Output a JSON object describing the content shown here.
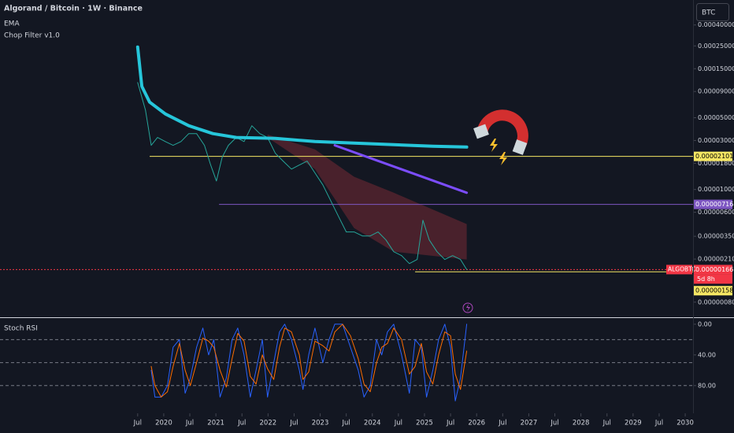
{
  "chart_data": [
    {
      "type": "line",
      "title": "Algorand / Bitcoin · 1W · Binance",
      "indicators": [
        "EMA",
        "Chop Filter v1.0"
      ],
      "currency_button": "BTC",
      "countdown": "5d 8h",
      "log_scale": true,
      "xlim": [
        2016.86,
        2030.15
      ],
      "xticks": [
        {
          "value": 2019.5,
          "label": "Jul"
        },
        {
          "value": 2020,
          "label": "2020"
        },
        {
          "value": 2020.5,
          "label": "Jul"
        },
        {
          "value": 2021,
          "label": "2021"
        },
        {
          "value": 2021.5,
          "label": "Jul"
        },
        {
          "value": 2022,
          "label": "2022"
        },
        {
          "value": 2022.5,
          "label": "Jul"
        },
        {
          "value": 2023,
          "label": "2023"
        },
        {
          "value": 2023.5,
          "label": "Jul"
        },
        {
          "value": 2024,
          "label": "2024"
        },
        {
          "value": 2024.5,
          "label": "Jul"
        },
        {
          "value": 2025,
          "label": "2025"
        },
        {
          "value": 2025.5,
          "label": "Jul"
        },
        {
          "value": 2026,
          "label": "2026"
        },
        {
          "value": 2026.5,
          "label": "Jul"
        },
        {
          "value": 2027,
          "label": "2027"
        },
        {
          "value": 2027.5,
          "label": "Jul"
        },
        {
          "value": 2028,
          "label": "2028"
        },
        {
          "value": 2028.5,
          "label": "Jul"
        },
        {
          "value": 2029,
          "label": "2029"
        },
        {
          "value": 2029.5,
          "label": "Jul"
        },
        {
          "value": 2030,
          "label": "2030"
        }
      ],
      "ylim": [
        0.0007,
        5.8e-07
      ],
      "yticks": [
        {
          "value": 0.0004,
          "label": "0.00040000"
        },
        {
          "value": 0.00025,
          "label": "0.00025000"
        },
        {
          "value": 0.00015,
          "label": "0.00015000"
        },
        {
          "value": 9e-05,
          "label": "0.00009000"
        },
        {
          "value": 5e-05,
          "label": "0.00005000"
        },
        {
          "value": 3e-05,
          "label": "0.00003000"
        },
        {
          "value": 1.8e-05,
          "label": "0.00001800"
        },
        {
          "value": 1e-05,
          "label": "0.00001000"
        },
        {
          "value": 6e-06,
          "label": "0.00000600"
        },
        {
          "value": 3.5e-06,
          "label": "0.00000350"
        },
        {
          "value": 2.1e-06,
          "label": "0.00000210"
        },
        {
          "value": 8e-07,
          "label": "0.00000080"
        }
      ],
      "series": [
        {
          "name": "ALGOBTC",
          "color": "#26a69a",
          "width": 1,
          "x": [
            2019.5,
            2019.65,
            2019.76,
            2019.88,
            2020.03,
            2020.18,
            2020.33,
            2020.48,
            2020.63,
            2020.78,
            2020.9,
            2021.01,
            2021.12,
            2021.24,
            2021.39,
            2021.54,
            2021.69,
            2021.84,
            2021.99,
            2022.14,
            2022.29,
            2022.45,
            2022.6,
            2022.75,
            2022.9,
            2023.05,
            2023.2,
            2023.35,
            2023.5,
            2023.65,
            2023.81,
            2023.96,
            2024.11,
            2024.26,
            2024.41,
            2024.56,
            2024.71,
            2024.86,
            2024.97,
            2025.09,
            2025.24,
            2025.39,
            2025.54,
            2025.69,
            2025.81
          ],
          "values": [
            0.00011,
            5.94e-05,
            2.69e-05,
            3.21e-05,
            2.93e-05,
            2.69e-05,
            2.93e-05,
            3.5e-05,
            3.5e-05,
            2.69e-05,
            1.73e-05,
            1.21e-05,
            2.06e-05,
            2.69e-05,
            3.21e-05,
            2.93e-05,
            4.18e-05,
            3.5e-05,
            3.21e-05,
            2.25e-05,
            1.89e-05,
            1.58e-05,
            1.73e-05,
            1.89e-05,
            1.45e-05,
            1.11e-05,
            7.81e-06,
            5.49e-06,
            3.86e-06,
            3.86e-06,
            3.53e-06,
            3.53e-06,
            3.86e-06,
            3.23e-06,
            2.48e-06,
            2.27e-06,
            1.9e-06,
            2.08e-06,
            5.02e-06,
            3.23e-06,
            2.48e-06,
            2.08e-06,
            2.27e-06,
            2.08e-06,
            1.66e-06
          ]
        },
        {
          "name": "EMA",
          "color": "#26c6da",
          "width": 4,
          "x": [
            2019.5,
            2019.58,
            2019.73,
            2020.03,
            2020.48,
            2020.94,
            2021.39,
            2022.14,
            2022.9,
            2023.65,
            2024.41,
            2025.16,
            2025.81
          ],
          "values": [
            0.000244,
            0.000101,
            7.09e-05,
            5.44e-05,
            4.18e-05,
            3.5e-05,
            3.21e-05,
            3.15e-05,
            2.93e-05,
            2.83e-05,
            2.73e-05,
            2.64e-05,
            2.59e-05
          ]
        },
        {
          "color": "#7c4dff",
          "width": 3,
          "x": [
            2023.28,
            2025.81
          ],
          "values": [
            2.69e-05,
            9.3e-06
          ]
        }
      ],
      "band": {
        "color": "#8b2f3a",
        "x": [
          2021.99,
          2022.9,
          2023.65,
          2024.41,
          2025.81
        ],
        "upper": [
          3.43e-05,
          2.46e-05,
          1.33e-05,
          9.3e-06,
          4.6e-06
        ],
        "lower": [
          3.21e-05,
          1.58e-05,
          4.21e-06,
          2.48e-06,
          2.08e-06
        ]
      },
      "levels": [
        {
          "value": 2.101e-05,
          "color": "#f5e663",
          "text_color": "#000000",
          "from": 2019.73
        },
        {
          "value": 7.16e-06,
          "color": "#7e57c2",
          "text_color": "#ffffff",
          "from": 2021.06
        },
        {
          "value": 1.66e-06,
          "color": "#f23645",
          "text_color": "#ffffff",
          "current": true
        },
        {
          "value": 1.58e-06,
          "color": "#f5e663",
          "text_color": "#000000",
          "from": 2024.82
        }
      ]
    },
    {
      "type": "line",
      "title": "Stoch RSI",
      "ylim": [
        -6,
        111
      ],
      "yticks": [
        {
          "value": 80,
          "label": "80.00"
        },
        {
          "value": 40,
          "label": "40.00"
        },
        {
          "value": 0,
          "label": "0.00"
        }
      ],
      "band": [
        20,
        80
      ],
      "band_color": "#2962ff",
      "hlines": [
        80,
        50,
        20
      ],
      "x": [
        2019.76,
        2019.83,
        2019.95,
        2020.07,
        2020.18,
        2020.3,
        2020.41,
        2020.51,
        2020.63,
        2020.75,
        2020.86,
        2020.96,
        2021.08,
        2021.2,
        2021.31,
        2021.42,
        2021.54,
        2021.66,
        2021.77,
        2021.89,
        2021.99,
        2022.11,
        2022.22,
        2022.32,
        2022.45,
        2022.6,
        2022.67,
        2022.78,
        2022.9,
        2023.05,
        2023.17,
        2023.28,
        2023.43,
        2023.58,
        2023.73,
        2023.84,
        2023.96,
        2024.08,
        2024.18,
        2024.29,
        2024.41,
        2024.56,
        2024.71,
        2024.82,
        2024.94,
        2025.04,
        2025.16,
        2025.27,
        2025.39,
        2025.5,
        2025.59,
        2025.69,
        2025.81
      ],
      "series": [
        {
          "color": "#2962ff",
          "values": [
            60,
            95,
            95,
            80,
            30,
            20,
            90,
            70,
            30,
            5,
            40,
            20,
            95,
            70,
            20,
            5,
            40,
            95,
            60,
            20,
            95,
            50,
            10,
            0,
            20,
            60,
            85,
            40,
            5,
            50,
            20,
            0,
            0,
            30,
            60,
            95,
            80,
            20,
            40,
            10,
            0,
            40,
            90,
            20,
            30,
            95,
            60,
            20,
            0,
            30,
            100,
            70,
            0
          ]
        },
        {
          "color": "#ff6d00",
          "values": [
            55,
            80,
            95,
            88,
            55,
            25,
            60,
            80,
            50,
            18,
            22,
            30,
            60,
            82,
            45,
            12,
            22,
            68,
            78,
            40,
            58,
            72,
            30,
            5,
            10,
            40,
            72,
            62,
            22,
            28,
            35,
            10,
            0,
            15,
            45,
            78,
            88,
            50,
            30,
            25,
            5,
            20,
            65,
            55,
            25,
            62,
            78,
            40,
            10,
            15,
            65,
            85,
            35
          ]
        }
      ]
    }
  ]
}
